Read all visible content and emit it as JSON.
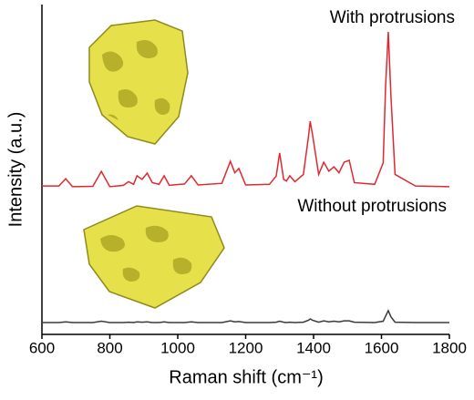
{
  "chart_data": {
    "type": "line",
    "xlabel": "Raman shift (cm⁻¹)",
    "ylabel": "Intensity (a.u.)",
    "annotations": [
      "With protrusions",
      "Without protrusions"
    ],
    "x": [
      600,
      650,
      670,
      690,
      750,
      775,
      800,
      840,
      855,
      870,
      880,
      895,
      910,
      925,
      945,
      960,
      975,
      1020,
      1040,
      1060,
      1130,
      1155,
      1168,
      1180,
      1200,
      1270,
      1290,
      1300,
      1312,
      1320,
      1330,
      1345,
      1370,
      1385,
      1390,
      1397,
      1415,
      1430,
      1445,
      1460,
      1475,
      1490,
      1505,
      1520,
      1580,
      1605,
      1612,
      1620,
      1628,
      1640,
      1700,
      1800
    ],
    "series": [
      {
        "color": "#e0282f",
        "values": [
          45.0,
          45.0,
          47.2,
          44.8,
          44.9,
          49.4,
          44.8,
          45.2,
          46.3,
          45.5,
          48.1,
          47.0,
          48.9,
          46.0,
          45.5,
          48.1,
          45.2,
          45.6,
          48.1,
          45.3,
          45.8,
          52.5,
          49.0,
          50.3,
          45.3,
          45.5,
          48.0,
          55.0,
          47.0,
          46.5,
          48.1,
          46.3,
          48.5,
          60.0,
          64.6,
          60.5,
          48.5,
          52.2,
          49.5,
          50.8,
          49.0,
          52.2,
          52.8,
          46.0,
          45.5,
          52.0,
          75.0,
          91.7,
          72.0,
          48.5,
          45.0,
          44.8
        ]
      },
      {
        "color": "#3a3a3a",
        "values": [
          3.6,
          3.6,
          3.8,
          3.6,
          3.6,
          4.0,
          3.6,
          3.6,
          3.7,
          3.6,
          3.8,
          3.7,
          3.8,
          3.6,
          3.6,
          3.8,
          3.6,
          3.6,
          3.8,
          3.6,
          3.6,
          4.1,
          3.8,
          3.9,
          3.6,
          3.6,
          3.7,
          4.0,
          3.7,
          3.6,
          3.7,
          3.6,
          3.7,
          4.3,
          4.7,
          4.3,
          3.7,
          4.1,
          3.8,
          4.0,
          3.8,
          4.1,
          4.1,
          3.7,
          3.6,
          4.0,
          5.5,
          7.2,
          5.3,
          3.7,
          3.6,
          3.6
        ]
      }
    ],
    "xlim": [
      600,
      1800
    ],
    "xticks": [
      600,
      800,
      1000,
      1200,
      1400,
      1600,
      1800
    ],
    "ylim": [
      0,
      100
    ]
  }
}
